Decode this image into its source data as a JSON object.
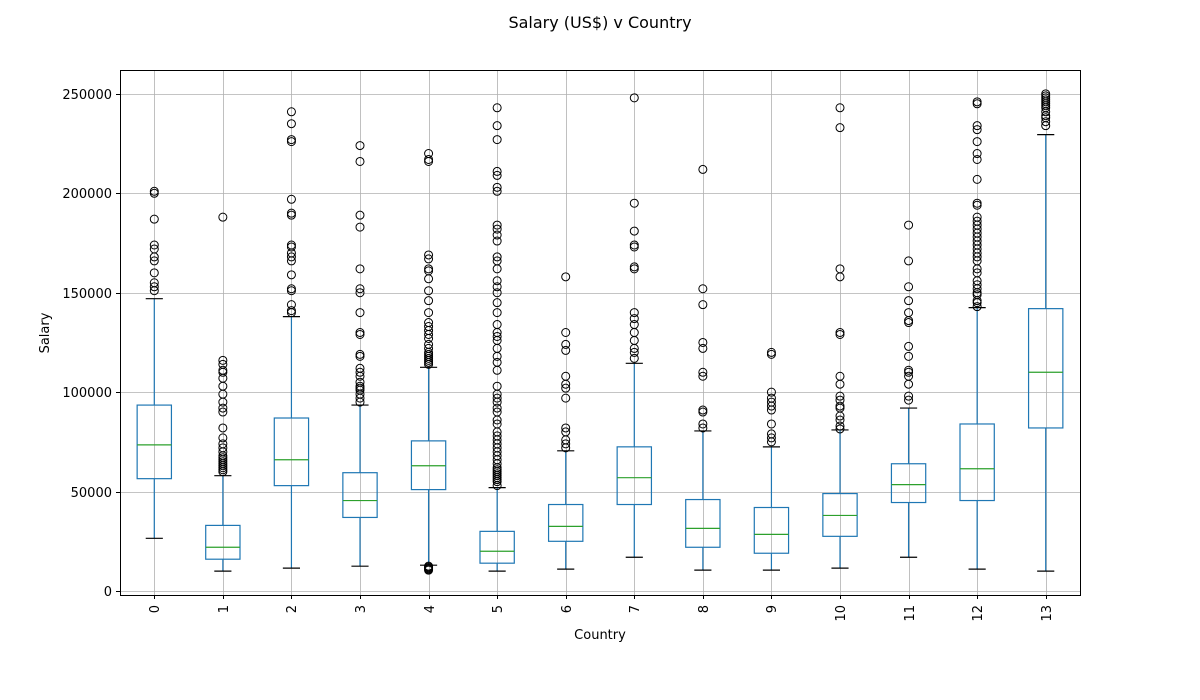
{
  "chart_data": {
    "type": "box",
    "title": "Salary (US$) v Country",
    "xlabel": "Country",
    "ylabel": "Salary",
    "categories": [
      "0",
      "1",
      "2",
      "3",
      "4",
      "5",
      "6",
      "7",
      "8",
      "9",
      "10",
      "11",
      "12",
      "13"
    ],
    "y_ticks": [
      0,
      50000,
      100000,
      150000,
      200000,
      250000
    ],
    "y_tick_labels": [
      "0",
      "50000",
      "100000",
      "150000",
      "200000",
      "250000"
    ],
    "ylim": [
      -2000,
      262000
    ],
    "grid": true,
    "colors": {
      "box": "#1f77b4",
      "median": "#2ca02c",
      "cap": "#000000",
      "flier": "#000000",
      "grid": "#b0b0b0",
      "axis": "#000000"
    },
    "boxes": [
      {
        "category": "0",
        "whislo": 26500,
        "q1": 56500,
        "med": 73500,
        "q3": 93500,
        "whishi": 147000,
        "fliers": [
          151000,
          153000,
          155000,
          160000,
          166000,
          168000,
          172000,
          174000,
          187000,
          200000,
          201000
        ]
      },
      {
        "category": "1",
        "whislo": 10000,
        "q1": 16000,
        "med": 22000,
        "q3": 33000,
        "whishi": 58000,
        "fliers": [
          60000,
          61000,
          62000,
          63000,
          64000,
          65000,
          66000,
          67000,
          68000,
          70000,
          72000,
          74000,
          77000,
          82000,
          90000,
          92000,
          95000,
          99000,
          103000,
          107000,
          110000,
          111000,
          114000,
          116000,
          188000
        ]
      },
      {
        "category": "2",
        "whislo": 11500,
        "q1": 53000,
        "med": 66000,
        "q3": 87000,
        "whishi": 138000,
        "fliers": [
          140000,
          141000,
          144000,
          151000,
          152000,
          159000,
          166000,
          168000,
          170000,
          173000,
          174000,
          189000,
          190000,
          197000,
          226000,
          227000,
          235000,
          241000
        ]
      },
      {
        "category": "3",
        "whislo": 12500,
        "q1": 37000,
        "med": 45500,
        "q3": 59500,
        "whishi": 93500,
        "fliers": [
          95000,
          97000,
          99000,
          101000,
          102000,
          103000,
          105000,
          108000,
          110000,
          112000,
          118000,
          119000,
          129000,
          130000,
          140000,
          150000,
          152000,
          162000,
          183000,
          189000,
          216000,
          224000
        ]
      },
      {
        "category": "4",
        "whislo": 13000,
        "q1": 51000,
        "med": 63000,
        "q3": 75500,
        "whishi": 112500,
        "fliers": [
          10500,
          11000,
          11500,
          12000,
          12500,
          114000,
          115000,
          116000,
          117000,
          118000,
          119000,
          120000,
          122000,
          124000,
          127000,
          129000,
          131000,
          133000,
          135000,
          140000,
          146000,
          151000,
          157000,
          161000,
          162000,
          167000,
          169000,
          216000,
          217000,
          220000
        ]
      },
      {
        "category": "5",
        "whislo": 10000,
        "q1": 14000,
        "med": 20000,
        "q3": 30000,
        "whishi": 52000,
        "fliers": [
          53000,
          55000,
          56000,
          57000,
          58000,
          59000,
          60000,
          61000,
          62000,
          64000,
          66000,
          68000,
          70000,
          72000,
          74000,
          76000,
          78000,
          80000,
          84000,
          86000,
          90000,
          92000,
          95000,
          97000,
          99000,
          103000,
          111000,
          115000,
          118000,
          122000,
          126000,
          128000,
          130000,
          134000,
          140000,
          145000,
          150000,
          153000,
          156000,
          162000,
          166000,
          168000,
          176000,
          179000,
          182000,
          184000,
          201000,
          203000,
          209000,
          211000,
          227000,
          234000,
          243000
        ]
      },
      {
        "category": "6",
        "whislo": 11000,
        "q1": 25000,
        "med": 32500,
        "q3": 43500,
        "whishi": 70500,
        "fliers": [
          72000,
          74000,
          76000,
          80000,
          82000,
          97000,
          102000,
          104000,
          108000,
          121000,
          124000,
          130000,
          158000
        ]
      },
      {
        "category": "7",
        "whislo": 17000,
        "q1": 43500,
        "med": 57000,
        "q3": 72500,
        "whishi": 114500,
        "fliers": [
          117000,
          120000,
          122000,
          126000,
          130000,
          134000,
          137000,
          140000,
          162000,
          163000,
          173000,
          174000,
          181000,
          195000,
          248000
        ]
      },
      {
        "category": "8",
        "whislo": 10500,
        "q1": 22000,
        "med": 31500,
        "q3": 46000,
        "whishi": 80500,
        "fliers": [
          82000,
          84000,
          90000,
          91000,
          108000,
          110000,
          122000,
          125000,
          144000,
          152000,
          212000
        ]
      },
      {
        "category": "9",
        "whislo": 10500,
        "q1": 19000,
        "med": 28500,
        "q3": 42000,
        "whishi": 72500,
        "fliers": [
          75000,
          77000,
          79000,
          84000,
          91000,
          93000,
          95000,
          97000,
          100000,
          119000,
          120000
        ]
      },
      {
        "category": "10",
        "whislo": 11500,
        "q1": 27500,
        "med": 38000,
        "q3": 49000,
        "whishi": 81000,
        "fliers": [
          81500,
          83000,
          86000,
          88000,
          92000,
          93000,
          96000,
          98000,
          104000,
          108000,
          129000,
          130000,
          158000,
          162000,
          233000,
          243000
        ]
      },
      {
        "category": "11",
        "whislo": 17000,
        "q1": 44500,
        "med": 53500,
        "q3": 64000,
        "whishi": 92000,
        "fliers": [
          96000,
          98000,
          104000,
          108000,
          110000,
          111000,
          118000,
          123000,
          135000,
          136000,
          140000,
          146000,
          153000,
          166000,
          184000
        ]
      },
      {
        "category": "12",
        "whislo": 11000,
        "q1": 45500,
        "med": 61500,
        "q3": 84000,
        "whishi": 142500,
        "fliers": [
          143000,
          145000,
          146000,
          149000,
          150000,
          152000,
          154000,
          156000,
          160000,
          162000,
          166000,
          168000,
          170000,
          172000,
          174000,
          176000,
          178000,
          180000,
          182000,
          184000,
          186000,
          188000,
          194000,
          195000,
          207000,
          217000,
          220000,
          226000,
          232000,
          234000,
          245000,
          246000
        ]
      },
      {
        "category": "13",
        "whislo": 10000,
        "q1": 82000,
        "med": 110000,
        "q3": 142000,
        "whishi": 229500,
        "fliers": [
          234000,
          236000,
          238000,
          239000,
          241000,
          243000,
          244000,
          245000,
          246000,
          247000,
          248000,
          249000,
          250000
        ]
      }
    ]
  }
}
